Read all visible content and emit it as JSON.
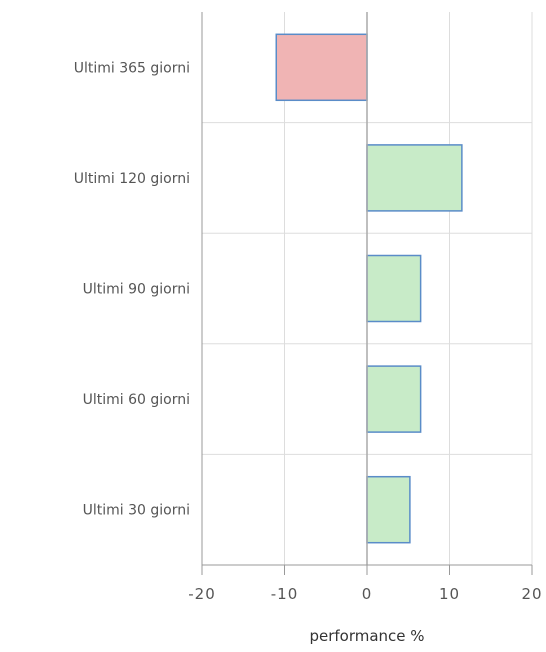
{
  "chart_data": {
    "type": "bar",
    "orientation": "horizontal",
    "categories": [
      "Ultimi 365 giorni",
      "Ultimi 120 giorni",
      "Ultimi 90 giorni",
      "Ultimi 60 giorni",
      "Ultimi 30 giorni"
    ],
    "values": [
      -11,
      11.5,
      6.5,
      6.5,
      5.2
    ],
    "xlabel": "performance %",
    "ylabel": "",
    "xlim": [
      -20,
      20
    ],
    "xticks": [
      -20,
      -10,
      0,
      10,
      20
    ],
    "xtick_labels": [
      "-20",
      "-10",
      "0",
      "10",
      "20"
    ],
    "grid": true,
    "colors": {
      "positive_fill": "#c8ebc8",
      "negative_fill": "#f0b4b4",
      "bar_stroke": "#5a8cc8",
      "grid": "#dddddd",
      "axis": "#999999",
      "zero_line": "#aaaaaa",
      "text": "#555555"
    }
  }
}
